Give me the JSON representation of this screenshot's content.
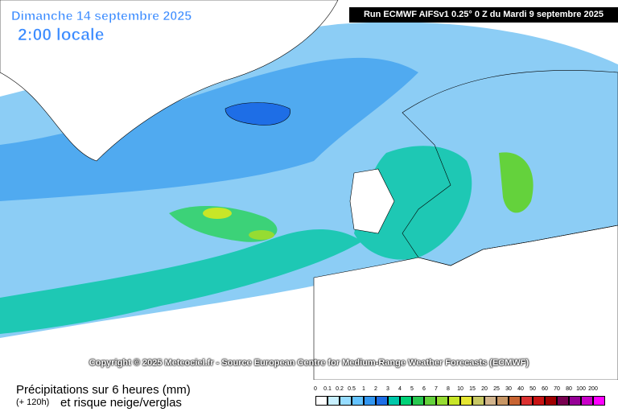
{
  "header": {
    "date": "Dimanche 14 septembre 2025",
    "time": "2:00 locale",
    "run": "Run ECMWF AIFSv1 0.25° 0 Z du Mardi 9 septembre 2025"
  },
  "copyright": "Copyright © 2025 Meteociel.fr - Source European Centre for Medium-Range Weather Forecasts (ECMWF)",
  "footer": {
    "title": "Précipitations sur 6 heures (mm)",
    "lead": "(+ 120h)",
    "subtitle": "et risque neige/verglas"
  },
  "legend": {
    "values": [
      0,
      0.1,
      0.2,
      0.5,
      1,
      2,
      3,
      4,
      5,
      6,
      7,
      8,
      10,
      15,
      20,
      25,
      30,
      40,
      50,
      60,
      70,
      80,
      100,
      200
    ],
    "colors": [
      "#ffffff",
      "#c8f0ff",
      "#96dcff",
      "#64c3ff",
      "#3296f0",
      "#1e6ee6",
      "#00c8aa",
      "#00d278",
      "#28c850",
      "#64d23c",
      "#96dc32",
      "#c8e628",
      "#e6e632",
      "#c8c864",
      "#d2b48c",
      "#c89664",
      "#c86432",
      "#dc3232",
      "#c81414",
      "#a00000",
      "#780050",
      "#960096",
      "#c800c8",
      "#ff00ff"
    ]
  }
}
